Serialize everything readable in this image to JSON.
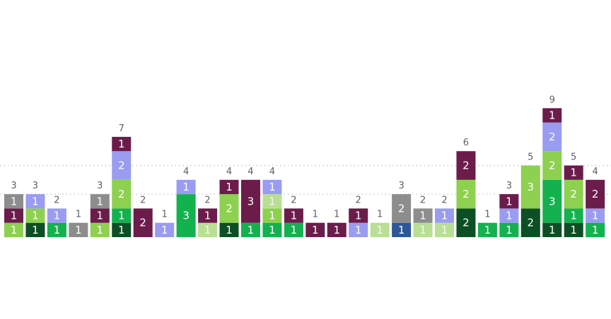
{
  "chart_data": {
    "type": "bar",
    "stacked": true,
    "ylim": [
      0,
      10
    ],
    "grid": true,
    "legend": "none",
    "colors": {
      "gray": "#8d8d8d",
      "plum": "#6b1c4b",
      "lavender": "#9a9cf2",
      "light_green": "#8ed04f",
      "dark_green": "#0d4f24",
      "green": "#14b14f",
      "pale_green": "#b9df94",
      "navy": "#2e5797"
    },
    "stacks": [
      {
        "total": 3,
        "segments": [
          {
            "c": "light_green",
            "v": 1
          },
          {
            "c": "plum",
            "v": 1
          },
          {
            "c": "gray",
            "v": 1
          }
        ]
      },
      {
        "total": 3,
        "segments": [
          {
            "c": "dark_green",
            "v": 1
          },
          {
            "c": "light_green",
            "v": 1
          },
          {
            "c": "lavender",
            "v": 1
          }
        ]
      },
      {
        "total": 2,
        "segments": [
          {
            "c": "green",
            "v": 1
          },
          {
            "c": "lavender",
            "v": 1
          }
        ]
      },
      {
        "total": 1,
        "segments": [
          {
            "c": "gray",
            "v": 1
          }
        ]
      },
      {
        "total": 3,
        "segments": [
          {
            "c": "light_green",
            "v": 1
          },
          {
            "c": "plum",
            "v": 1
          },
          {
            "c": "gray",
            "v": 1
          }
        ]
      },
      {
        "total": 7,
        "segments": [
          {
            "c": "dark_green",
            "v": 1
          },
          {
            "c": "green",
            "v": 1
          },
          {
            "c": "light_green",
            "v": 2
          },
          {
            "c": "lavender",
            "v": 2
          },
          {
            "c": "plum",
            "v": 1
          }
        ]
      },
      {
        "total": 2,
        "segments": [
          {
            "c": "plum",
            "v": 2
          }
        ]
      },
      {
        "total": 1,
        "segments": [
          {
            "c": "lavender",
            "v": 1
          }
        ]
      },
      {
        "total": 4,
        "segments": [
          {
            "c": "green",
            "v": 3
          },
          {
            "c": "lavender",
            "v": 1
          }
        ]
      },
      {
        "total": 2,
        "segments": [
          {
            "c": "pale_green",
            "v": 1
          },
          {
            "c": "plum",
            "v": 1
          }
        ]
      },
      {
        "total": 4,
        "segments": [
          {
            "c": "dark_green",
            "v": 1
          },
          {
            "c": "light_green",
            "v": 2
          },
          {
            "c": "plum",
            "v": 1
          }
        ]
      },
      {
        "total": 4,
        "segments": [
          {
            "c": "green",
            "v": 1
          },
          {
            "c": "plum",
            "v": 3
          }
        ]
      },
      {
        "total": 4,
        "segments": [
          {
            "c": "green",
            "v": 1
          },
          {
            "c": "light_green",
            "v": 1
          },
          {
            "c": "pale_green",
            "v": 1
          },
          {
            "c": "lavender",
            "v": 1
          }
        ]
      },
      {
        "total": 2,
        "segments": [
          {
            "c": "green",
            "v": 1
          },
          {
            "c": "plum",
            "v": 1
          }
        ]
      },
      {
        "total": 1,
        "segments": [
          {
            "c": "plum",
            "v": 1
          }
        ]
      },
      {
        "total": 1,
        "segments": [
          {
            "c": "plum",
            "v": 1
          }
        ]
      },
      {
        "total": 2,
        "segments": [
          {
            "c": "lavender",
            "v": 1
          },
          {
            "c": "plum",
            "v": 1
          }
        ]
      },
      {
        "total": 1,
        "segments": [
          {
            "c": "pale_green",
            "v": 1
          }
        ]
      },
      {
        "total": 3,
        "segments": [
          {
            "c": "navy",
            "v": 1
          },
          {
            "c": "gray",
            "v": 2
          }
        ]
      },
      {
        "total": 2,
        "segments": [
          {
            "c": "pale_green",
            "v": 1
          },
          {
            "c": "gray",
            "v": 1
          }
        ]
      },
      {
        "total": 2,
        "segments": [
          {
            "c": "pale_green",
            "v": 1
          },
          {
            "c": "lavender",
            "v": 1
          }
        ]
      },
      {
        "total": 6,
        "segments": [
          {
            "c": "dark_green",
            "v": 2
          },
          {
            "c": "light_green",
            "v": 2
          },
          {
            "c": "plum",
            "v": 2
          }
        ]
      },
      {
        "total": 1,
        "segments": [
          {
            "c": "green",
            "v": 1
          }
        ]
      },
      {
        "total": 3,
        "segments": [
          {
            "c": "green",
            "v": 1
          },
          {
            "c": "lavender",
            "v": 1
          },
          {
            "c": "plum",
            "v": 1
          }
        ]
      },
      {
        "total": 5,
        "segments": [
          {
            "c": "dark_green",
            "v": 2
          },
          {
            "c": "light_green",
            "v": 3
          }
        ]
      },
      {
        "total": 9,
        "segments": [
          {
            "c": "dark_green",
            "v": 1
          },
          {
            "c": "green",
            "v": 3
          },
          {
            "c": "light_green",
            "v": 2
          },
          {
            "c": "lavender",
            "v": 2
          },
          {
            "c": "plum",
            "v": 1
          }
        ]
      },
      {
        "total": 5,
        "segments": [
          {
            "c": "dark_green",
            "v": 1
          },
          {
            "c": "green",
            "v": 1
          },
          {
            "c": "light_green",
            "v": 2
          },
          {
            "c": "plum",
            "v": 1
          }
        ]
      },
      {
        "total": 4,
        "segments": [
          {
            "c": "green",
            "v": 1
          },
          {
            "c": "lavender",
            "v": 1
          },
          {
            "c": "plum",
            "v": 2
          }
        ]
      }
    ]
  }
}
